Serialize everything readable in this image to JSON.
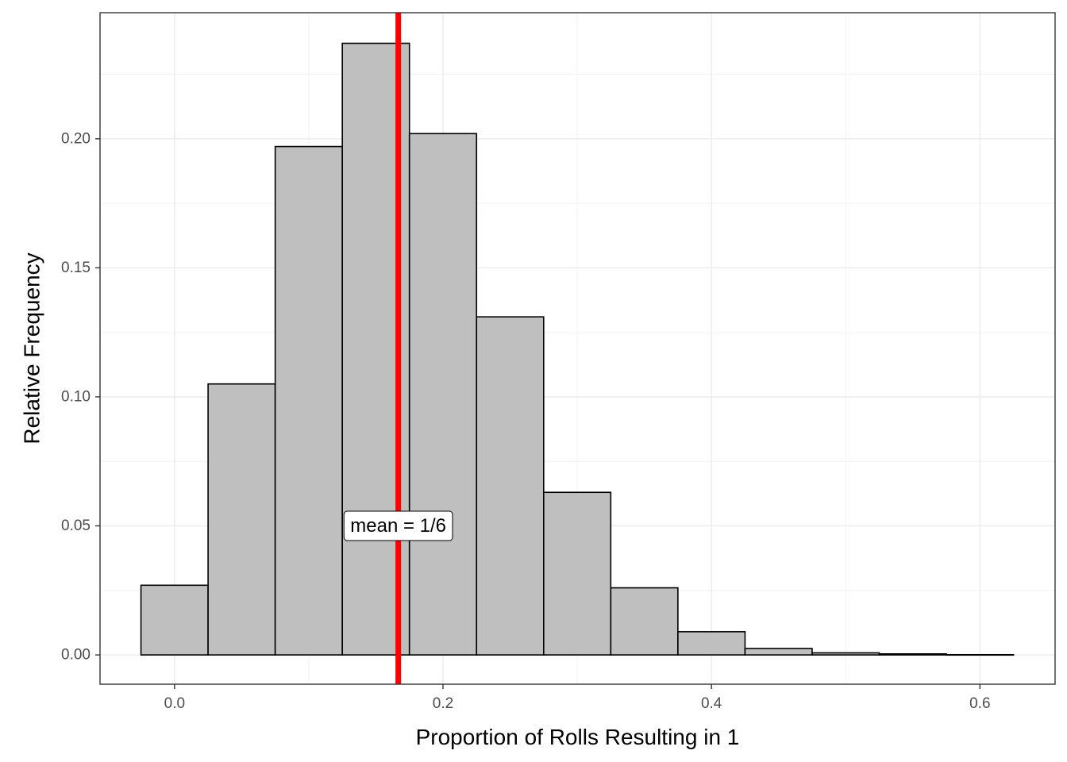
{
  "chart_data": {
    "type": "bar",
    "subtype": "histogram",
    "title": "",
    "xlabel": "Proportion of Rolls Resulting in 1",
    "ylabel": "Relative Frequency",
    "bin_width": 0.05,
    "bins": [
      {
        "center": 0.0,
        "value": 0.027
      },
      {
        "center": 0.05,
        "value": 0.105
      },
      {
        "center": 0.1,
        "value": 0.197
      },
      {
        "center": 0.15,
        "value": 0.237
      },
      {
        "center": 0.2,
        "value": 0.202
      },
      {
        "center": 0.25,
        "value": 0.131
      },
      {
        "center": 0.3,
        "value": 0.063
      },
      {
        "center": 0.35,
        "value": 0.026
      },
      {
        "center": 0.4,
        "value": 0.009
      },
      {
        "center": 0.45,
        "value": 0.0025
      },
      {
        "center": 0.5,
        "value": 0.0008
      },
      {
        "center": 0.55,
        "value": 0.0004
      },
      {
        "center": 0.6,
        "value": 0.0001
      }
    ],
    "xlim": [
      -0.0555,
      0.656
    ],
    "ylim": [
      -0.01135,
      0.24885
    ],
    "x_ticks": [
      {
        "value": 0.0,
        "label": "0.0"
      },
      {
        "value": 0.2,
        "label": "0.2"
      },
      {
        "value": 0.4,
        "label": "0.4"
      },
      {
        "value": 0.6,
        "label": "0.6"
      }
    ],
    "y_ticks": [
      {
        "value": 0.0,
        "label": "0.00"
      },
      {
        "value": 0.05,
        "label": "0.05"
      },
      {
        "value": 0.1,
        "label": "0.10"
      },
      {
        "value": 0.15,
        "label": "0.15"
      },
      {
        "value": 0.2,
        "label": "0.20"
      }
    ],
    "mean_line": {
      "value": 0.16667,
      "color": "#ff0000"
    },
    "annotation": {
      "text": "mean = 1/6",
      "x": 0.16667,
      "y": 0.05
    },
    "bar_fill": "#bfbfbf",
    "bar_stroke": "#000000",
    "grid": true,
    "theme": "bw",
    "legend": "none"
  }
}
